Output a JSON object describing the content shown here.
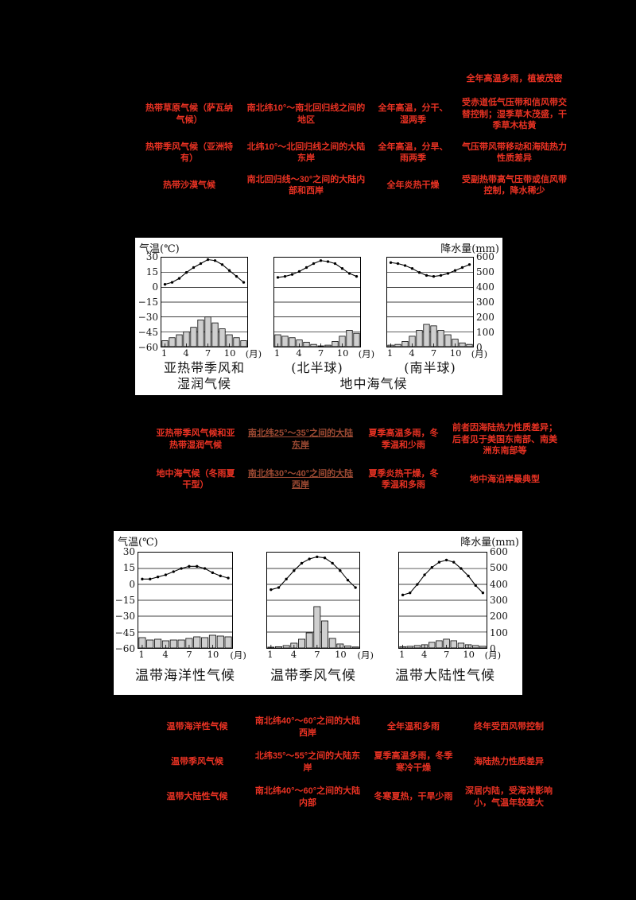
{
  "page": {
    "background": "#000000",
    "text_red": "#e93223",
    "text_brown": "#9d4a33"
  },
  "tables": {
    "fragment": "全年高温多雨，植被茂密",
    "top": {
      "rows": [
        {
          "cells": [
            "热带草原气候（萨瓦纳气候）",
            "南北纬10°～南北回归线之间的地区",
            "全年高温，分干、湿两季",
            "受赤道低气压带和信风带交替控制；湿季草木茂盛，干季草木枯黄"
          ]
        },
        {
          "cells": [
            "热带季风气候（亚洲特有）",
            "北纬10°～北回归线之间的大陆东岸",
            "全年高温，分旱、雨两季",
            "气压带风带移动和海陆热力性质差异"
          ]
        },
        {
          "cells": [
            "热带沙漠气候",
            "南北回归线～30°之间的大陆内部和西岸",
            "全年炎热干燥",
            "受副热带高气压带或信风带控制，降水稀少"
          ]
        }
      ]
    },
    "middle": {
      "rows": [
        {
          "cells": [
            "亚热带季风气候和亚热带湿润气候",
            "南北纬25°～35°之间的大陆东岸",
            "夏季高温多雨，冬季温和少雨",
            "前者因海陆热力性质差异；后者见于美国东南部、南美洲东南部等"
          ]
        },
        {
          "cells": [
            "地中海气候（冬雨夏干型）",
            "南北纬30°～40°之间的大陆西岸",
            "夏季炎热干燥，冬季温和多雨",
            "地中海沿岸最典型"
          ]
        }
      ]
    },
    "bottom": {
      "rows": [
        {
          "cells": [
            "温带海洋性气候",
            "南北纬40°～60°之间的大陆西岸",
            "全年温和多雨",
            "终年受西风带控制"
          ]
        },
        {
          "cells": [
            "温带季风气候",
            "北纬35°～55°之间的大陆东岸",
            "夏季高温多雨，冬季寒冷干燥",
            "海陆热力性质差异"
          ]
        },
        {
          "cells": [
            "温带大陆性气候",
            "南北纬40°～60°之间的大陆内部",
            "冬寒夏热，干旱少雨",
            "深居内陆，受海洋影响小，气温年较差大"
          ]
        }
      ]
    }
  },
  "charts": {
    "temp_axis_title": "气温(℃)",
    "precip_axis_title": "降水量(mm)",
    "temp_ticks": [
      "30",
      "15",
      "0",
      "−15",
      "−30",
      "−45",
      "−60"
    ],
    "precip_ticks": [
      "600",
      "500",
      "400",
      "300",
      "200",
      "100",
      "0"
    ],
    "month_ticks": [
      "1",
      "4",
      "7",
      "10"
    ],
    "month_unit": "(月)",
    "panel1": {
      "captions": [
        "亚热带季风和\n湿润气候",
        "(北半球)",
        "(南半球)",
        "地中海气候"
      ]
    },
    "panel2": {
      "captions": [
        "温带海洋性气候",
        "温带季风气候",
        "温带大陆性气候"
      ]
    }
  },
  "chart_data": [
    {
      "type": "bar+line",
      "title": "亚热带季风和湿润气候",
      "months": [
        1,
        2,
        3,
        4,
        5,
        6,
        7,
        8,
        9,
        10,
        11,
        12
      ],
      "temp_c": [
        3,
        5,
        9,
        15,
        20,
        24,
        28,
        27,
        23,
        17,
        11,
        5
      ],
      "precip_mm": [
        40,
        60,
        80,
        100,
        130,
        180,
        200,
        160,
        120,
        80,
        60,
        40
      ],
      "temp_axis": [
        -60,
        30
      ],
      "precip_axis": [
        0,
        600
      ]
    },
    {
      "type": "bar+line",
      "title": "地中海气候(北半球)",
      "months": [
        1,
        2,
        3,
        4,
        5,
        6,
        7,
        8,
        9,
        10,
        11,
        12
      ],
      "temp_c": [
        10,
        11,
        13,
        16,
        20,
        24,
        27,
        26,
        24,
        19,
        14,
        11
      ],
      "precip_mm": [
        80,
        70,
        60,
        45,
        30,
        15,
        5,
        10,
        35,
        70,
        110,
        90
      ],
      "temp_axis": [
        -60,
        30
      ],
      "precip_axis": [
        0,
        600
      ]
    },
    {
      "type": "bar+line",
      "title": "地中海气候(南半球)",
      "months": [
        1,
        2,
        3,
        4,
        5,
        6,
        7,
        8,
        9,
        10,
        11,
        12
      ],
      "temp_c": [
        25,
        24,
        22,
        19,
        15,
        12,
        11,
        12,
        14,
        17,
        20,
        23
      ],
      "precip_mm": [
        10,
        15,
        35,
        70,
        110,
        150,
        140,
        110,
        80,
        50,
        25,
        15
      ],
      "temp_axis": [
        -60,
        30
      ],
      "precip_axis": [
        0,
        600
      ]
    },
    {
      "type": "bar+line",
      "title": "温带海洋性气候",
      "months": [
        1,
        2,
        3,
        4,
        5,
        6,
        7,
        8,
        9,
        10,
        11,
        12
      ],
      "temp_c": [
        5,
        5,
        7,
        9,
        12,
        15,
        17,
        17,
        15,
        11,
        8,
        6
      ],
      "precip_mm": [
        65,
        50,
        55,
        45,
        50,
        50,
        60,
        70,
        65,
        80,
        75,
        70
      ],
      "temp_axis": [
        -60,
        30
      ],
      "precip_axis": [
        0,
        600
      ]
    },
    {
      "type": "bar+line",
      "title": "温带季风气候",
      "months": [
        1,
        2,
        3,
        4,
        5,
        6,
        7,
        8,
        9,
        10,
        11,
        12
      ],
      "temp_c": [
        -5,
        -3,
        5,
        13,
        20,
        24,
        26,
        25,
        20,
        13,
        4,
        -3
      ],
      "precip_mm": [
        5,
        8,
        15,
        30,
        55,
        95,
        260,
        170,
        60,
        25,
        12,
        6
      ],
      "temp_axis": [
        -60,
        30
      ],
      "precip_axis": [
        0,
        600
      ]
    },
    {
      "type": "bar+line",
      "title": "温带大陆性气候",
      "months": [
        1,
        2,
        3,
        4,
        5,
        6,
        7,
        8,
        9,
        10,
        11,
        12
      ],
      "temp_c": [
        -10,
        -8,
        0,
        9,
        16,
        21,
        23,
        21,
        15,
        8,
        -1,
        -8
      ],
      "precip_mm": [
        8,
        10,
        15,
        20,
        35,
        45,
        55,
        45,
        30,
        20,
        15,
        10
      ],
      "temp_axis": [
        -60,
        30
      ],
      "precip_axis": [
        0,
        600
      ]
    }
  ]
}
